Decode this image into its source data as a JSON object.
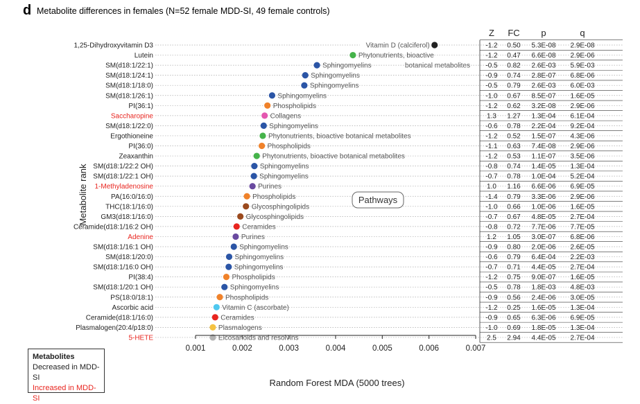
{
  "figure": {
    "panel_letter": "d",
    "title": "Metabolite differences in females (N=52 female MDD-SI, 49 female controls)",
    "pathways_box": "Pathways"
  },
  "legend": {
    "title": "Metabolites",
    "items": [
      {
        "label": "Decreased in MDD-SI",
        "color": "#222222"
      },
      {
        "label": "Increased in MDD-SI",
        "color": "#e8251f"
      }
    ]
  },
  "stats_headers": [
    "Z",
    "FC",
    "p",
    "q"
  ],
  "chart_data": {
    "type": "scatter",
    "xlabel": "Random Forest MDA (5000 trees)",
    "ylabel": "Metabolite rank",
    "xlim": [
      0.001,
      0.007
    ],
    "xticks": [
      "0.001",
      "0.002",
      "0.003",
      "0.004",
      "0.005",
      "0.006",
      "0.007"
    ],
    "grid": "dotted row guides",
    "points": [
      {
        "name": "1,25-Dihydroxyvitamin D3",
        "mda": 0.00612,
        "pathway": "Vitamin D (calciferol)",
        "color": "#222222",
        "increased": false,
        "z": "-1.2",
        "fc": "0.50",
        "p": "5.3E-08",
        "q": "2.9E-08"
      },
      {
        "name": "Lutein",
        "mda": 0.00437,
        "pathway": "Phytonutrients, bioactive",
        "pathway2": "botanical metabolites",
        "color": "#45b34a",
        "increased": false,
        "z": "-1.2",
        "fc": "0.47",
        "p": "6.6E-08",
        "q": "2.9E-06"
      },
      {
        "name": "SM(d18:1/22:1)",
        "mda": 0.0036,
        "pathway": "Sphingomyelins",
        "color": "#2b55a6",
        "increased": false,
        "z": "-0.5",
        "fc": "0.82",
        "p": "2.6E-03",
        "q": "5.9E-03"
      },
      {
        "name": "SM(d18:1/24:1)",
        "mda": 0.00335,
        "pathway": "Sphingomyelins",
        "color": "#2b55a6",
        "increased": false,
        "z": "-0.9",
        "fc": "0.74",
        "p": "2.8E-07",
        "q": "6.8E-06"
      },
      {
        "name": "SM(d18:1/18:0)",
        "mda": 0.00333,
        "pathway": "Sphingomyelins",
        "color": "#2b55a6",
        "increased": false,
        "z": "-0.5",
        "fc": "0.79",
        "p": "2.6E-03",
        "q": "6.0E-03"
      },
      {
        "name": "SM(d18:1/26:1)",
        "mda": 0.00264,
        "pathway": "Sphingomyelins",
        "color": "#2b55a6",
        "increased": false,
        "z": "-1.0",
        "fc": "0.67",
        "p": "8.5E-07",
        "q": "1.6E-05"
      },
      {
        "name": "PI(36:1)",
        "mda": 0.00254,
        "pathway": "Phospholipids",
        "color": "#f0822a",
        "increased": false,
        "z": "-1.2",
        "fc": "0.62",
        "p": "3.2E-08",
        "q": "2.9E-06"
      },
      {
        "name": "Saccharopine",
        "mda": 0.00248,
        "pathway": "Collagens",
        "color": "#e457b0",
        "increased": true,
        "z": "1.3",
        "fc": "1.27",
        "p": "1.3E-04",
        "q": "6.1E-04"
      },
      {
        "name": "SM(d18:1/22:0)",
        "mda": 0.00246,
        "pathway": "Sphingomyelins",
        "color": "#2b55a6",
        "increased": false,
        "z": "-0.6",
        "fc": "0.78",
        "p": "2.2E-04",
        "q": "9.2E-04"
      },
      {
        "name": "Ergothioneine",
        "mda": 0.00244,
        "pathway": "Phytonutrients, bioactive botanical metabolites",
        "color": "#45b34a",
        "increased": false,
        "z": "-1.2",
        "fc": "0.52",
        "p": "1.5E-07",
        "q": "4.3E-06"
      },
      {
        "name": "PI(36:0)",
        "mda": 0.00242,
        "pathway": "Phospholipids",
        "color": "#f0822a",
        "increased": false,
        "z": "-1.1",
        "fc": "0.63",
        "p": "7.4E-08",
        "q": "2.9E-06"
      },
      {
        "name": "Zeaxanthin",
        "mda": 0.00231,
        "pathway": "Phytonutrients, bioactive botanical metabolites",
        "color": "#45b34a",
        "increased": false,
        "z": "-1.2",
        "fc": "0.53",
        "p": "1.1E-07",
        "q": "3.5E-06"
      },
      {
        "name": "SM(d18:1/22:2 OH)",
        "mda": 0.00226,
        "pathway": "Sphingomyelins",
        "color": "#2b55a6",
        "increased": false,
        "z": "-0.8",
        "fc": "0.74",
        "p": "1.4E-05",
        "q": "1.3E-04"
      },
      {
        "name": "SM(d18:1/22:1 OH)",
        "mda": 0.00225,
        "pathway": "Sphingomyelins",
        "color": "#2b55a6",
        "increased": false,
        "z": "-0.7",
        "fc": "0.78",
        "p": "1.0E-04",
        "q": "5.2E-04"
      },
      {
        "name": "1-Methyladenosine",
        "mda": 0.00222,
        "pathway": "Purines",
        "color": "#6a4aa0",
        "increased": true,
        "z": "1.0",
        "fc": "1.16",
        "p": "6.6E-06",
        "q": "6.9E-05"
      },
      {
        "name": "PA(16:0/16:0)",
        "mda": 0.0021,
        "pathway": "Phospholipids",
        "color": "#f0822a",
        "increased": false,
        "z": "-1.4",
        "fc": "0.79",
        "p": "3.3E-06",
        "q": "2.9E-06"
      },
      {
        "name": "THC(18:1/16:0)",
        "mda": 0.00208,
        "pathway": "Glycosphingolipids",
        "color": "#9b4a1e",
        "increased": false,
        "z": "-1.0",
        "fc": "0.66",
        "p": "1.0E-06",
        "q": "1.6E-05"
      },
      {
        "name": "GM3(d18:1/16:0)",
        "mda": 0.00196,
        "pathway": "Glycosphingolipids",
        "color": "#9b4a1e",
        "increased": false,
        "z": "-0.7",
        "fc": "0.67",
        "p": "4.8E-05",
        "q": "2.7E-04"
      },
      {
        "name": "Ceramide(d18:1/16:2 OH)",
        "mda": 0.00188,
        "pathway": "Ceramides",
        "color": "#e8251f",
        "increased": false,
        "z": "-0.8",
        "fc": "0.72",
        "p": "7.7E-06",
        "q": "7.7E-05"
      },
      {
        "name": "Adenine",
        "mda": 0.00186,
        "pathway": "Purines",
        "color": "#6a4aa0",
        "increased": true,
        "z": "1.2",
        "fc": "1.05",
        "p": "3.0E-07",
        "q": "6.8E-06"
      },
      {
        "name": "SM(d18:1/16:1 OH)",
        "mda": 0.00182,
        "pathway": "Sphingomyelins",
        "color": "#2b55a6",
        "increased": false,
        "z": "-0.9",
        "fc": "0.80",
        "p": "2.0E-06",
        "q": "2.6E-05"
      },
      {
        "name": "SM(d18:1/20:0)",
        "mda": 0.00172,
        "pathway": "Sphingomyelins",
        "color": "#2b55a6",
        "increased": false,
        "z": "-0.6",
        "fc": "0.79",
        "p": "6.4E-04",
        "q": "2.2E-03"
      },
      {
        "name": "SM(d18:1/16:0 OH)",
        "mda": 0.00171,
        "pathway": "Sphingomyelins",
        "color": "#2b55a6",
        "increased": false,
        "z": "-0.7",
        "fc": "0.71",
        "p": "4.4E-05",
        "q": "2.7E-04"
      },
      {
        "name": "PI(38:4)",
        "mda": 0.00166,
        "pathway": "Phospholipids",
        "color": "#f0822a",
        "increased": false,
        "z": "-1.2",
        "fc": "0.75",
        "p": "9.0E-07",
        "q": "1.6E-05"
      },
      {
        "name": "SM(d18:1/20:1 OH)",
        "mda": 0.00162,
        "pathway": "Sphingomyelins",
        "color": "#2b55a6",
        "increased": false,
        "z": "-0.5",
        "fc": "0.78",
        "p": "1.8E-03",
        "q": "4.8E-03"
      },
      {
        "name": "PS(18:0/18:1)",
        "mda": 0.00152,
        "pathway": "Phospholipids",
        "color": "#f0822a",
        "increased": false,
        "z": "-0.9",
        "fc": "0.56",
        "p": "2.4E-06",
        "q": "3.0E-05"
      },
      {
        "name": "Ascorbic acid",
        "mda": 0.00145,
        "pathway": "Vitamin C (ascorbate)",
        "color": "#4fc8ef",
        "increased": false,
        "z": "-1.2",
        "fc": "0.25",
        "p": "1.6E-05",
        "q": "1.3E-04"
      },
      {
        "name": "Ceramide(d18:1/16:0)",
        "mda": 0.00142,
        "pathway": "Ceramides",
        "color": "#e8251f",
        "increased": false,
        "z": "-0.9",
        "fc": "0.65",
        "p": "6.3E-06",
        "q": "6.9E-05"
      },
      {
        "name": "Plasmalogen(20:4/p18:0)",
        "mda": 0.00137,
        "pathway": "Plasmalogens",
        "color": "#f5c242",
        "increased": false,
        "z": "-1.0",
        "fc": "0.69",
        "p": "1.8E-05",
        "q": "1.3E-04"
      },
      {
        "name": "5-HETE",
        "mda": 0.00137,
        "pathway": "Eicosanoids and resolvins",
        "color": "#b3b3b3",
        "increased": true,
        "z": "2.5",
        "fc": "2.94",
        "p": "4.4E-05",
        "q": "2.7E-04"
      }
    ]
  }
}
